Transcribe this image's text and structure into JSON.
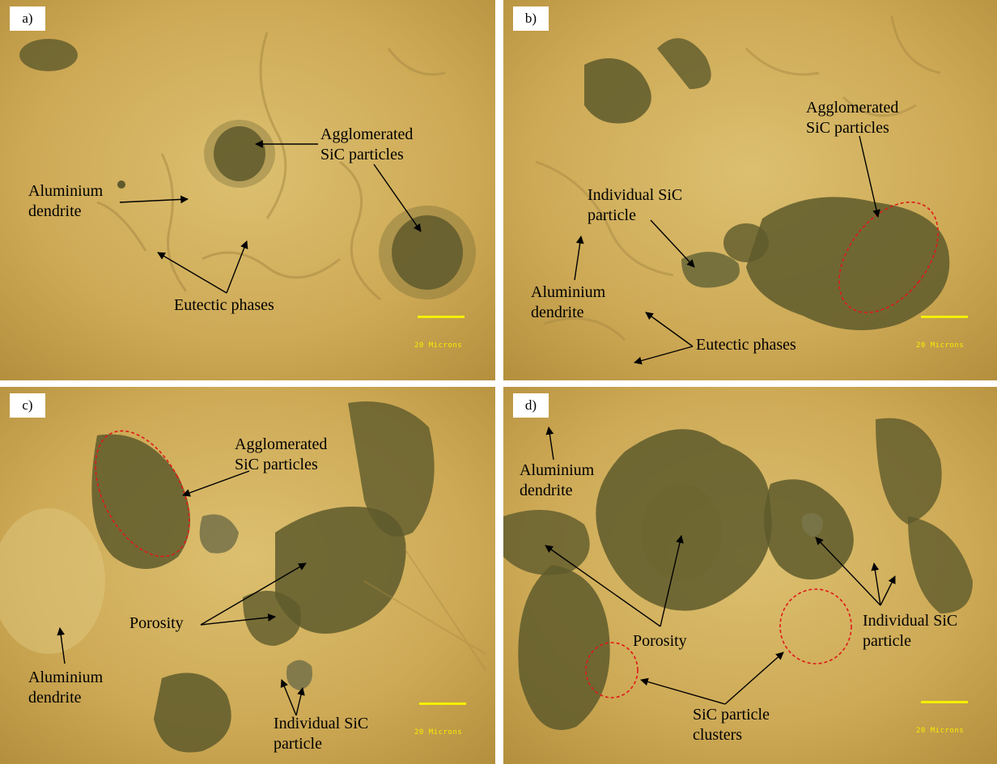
{
  "panels": [
    {
      "label": "a)",
      "scale_text": "20 Microns",
      "annotations": {
        "agglomerated_line1": "Agglomerated",
        "agglomerated_line2": "SiC particles",
        "aluminium_line1": "Aluminium",
        "aluminium_line2": "dendrite",
        "eutectic": "Eutectic phases"
      }
    },
    {
      "label": "b)",
      "scale_text": "20 Microns",
      "annotations": {
        "agglomerated_line1": "Agglomerated",
        "agglomerated_line2": "SiC particles",
        "individual_line1": "Individual SiC",
        "individual_line2": "particle",
        "aluminium_line1": "Aluminium",
        "aluminium_line2": "dendrite",
        "eutectic": "Eutectic phases"
      }
    },
    {
      "label": "c)",
      "scale_text": "20 Microns",
      "annotations": {
        "agglomerated_line1": "Agglomerated",
        "agglomerated_line2": "SiC particles",
        "porosity": "Porosity",
        "aluminium_line1": "Aluminium",
        "aluminium_line2": "dendrite",
        "individual_line1": "Individual SiC",
        "individual_line2": "particle"
      }
    },
    {
      "label": "d)",
      "scale_text": "20 Microns",
      "annotations": {
        "aluminium_line1": "Aluminium",
        "aluminium_line2": "dendrite",
        "porosity": "Porosity",
        "individual_line1": "Individual SiC",
        "individual_line2": "particle",
        "clusters_line1": "SiC particle",
        "clusters_line2": "clusters"
      }
    }
  ],
  "colors": {
    "matrix": "#c9a552",
    "matrix_light": "#dcc070",
    "particle_dark": "#5e5a2c",
    "scale_bar": "#f4f000",
    "highlight_ellipse": "#e01818"
  }
}
